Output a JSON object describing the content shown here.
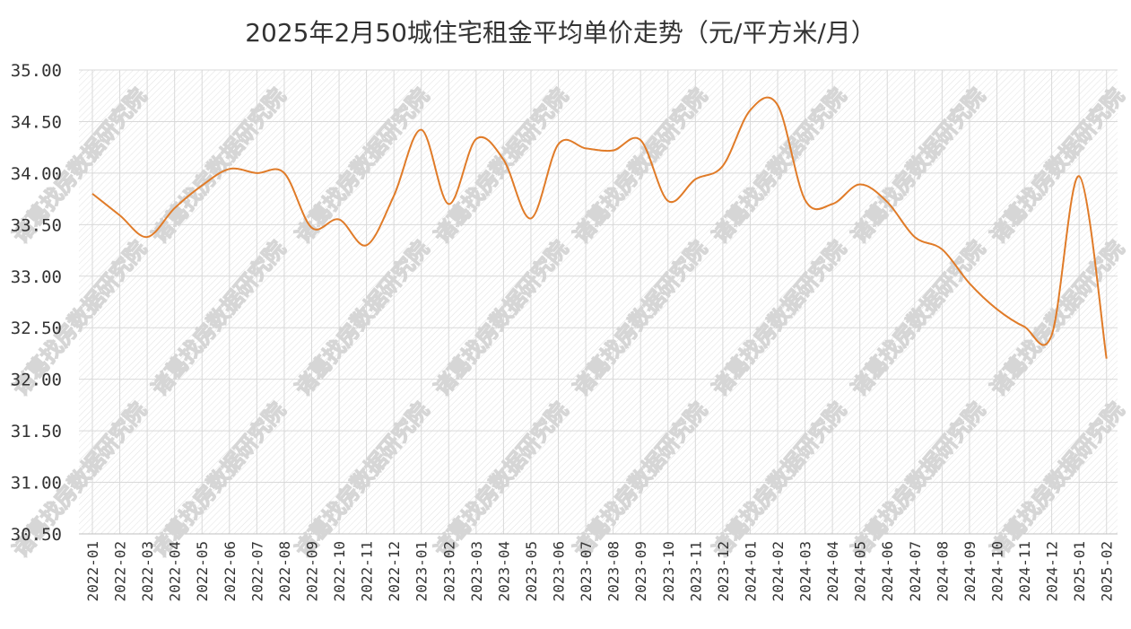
{
  "chart_data": {
    "type": "line",
    "title": "2025年2月50城住宅租金平均单价走势（元/平方米/月）",
    "xlabel": "",
    "ylabel": "",
    "ylim": [
      30.5,
      35.0
    ],
    "yticks": [
      "35.00",
      "34.50",
      "34.00",
      "33.50",
      "33.00",
      "32.50",
      "32.00",
      "31.50",
      "31.00",
      "30.50"
    ],
    "grid": true,
    "legend": "none",
    "line_color": "#e07b28",
    "watermark": "诸葛找房数据研究院",
    "categories": [
      "2022-01",
      "2022-02",
      "2022-03",
      "2022-04",
      "2022-05",
      "2022-06",
      "2022-07",
      "2022-08",
      "2022-09",
      "2022-10",
      "2022-11",
      "2022-12",
      "2023-01",
      "2023-02",
      "2023-03",
      "2023-04",
      "2023-05",
      "2023-06",
      "2023-07",
      "2023-08",
      "2023-09",
      "2023-10",
      "2023-11",
      "2023-12",
      "2024-01",
      "2024-02",
      "2024-03",
      "2024-04",
      "2024-05",
      "2024-06",
      "2024-07",
      "2024-08",
      "2024-09",
      "2024-10",
      "2024-11",
      "2024-12",
      "2025-01",
      "2025-02"
    ],
    "series": [
      {
        "values": [
          33.8,
          33.59,
          33.38,
          33.66,
          33.88,
          34.04,
          34.0,
          34.0,
          33.47,
          33.55,
          33.3,
          33.78,
          34.42,
          33.7,
          34.33,
          34.13,
          33.56,
          34.28,
          34.24,
          34.22,
          34.32,
          33.73,
          33.94,
          34.07,
          34.61,
          34.66,
          33.74,
          33.7,
          33.89,
          33.72,
          33.38,
          33.26,
          32.93,
          32.68,
          32.51,
          32.43,
          33.97,
          32.2
        ]
      }
    ]
  }
}
